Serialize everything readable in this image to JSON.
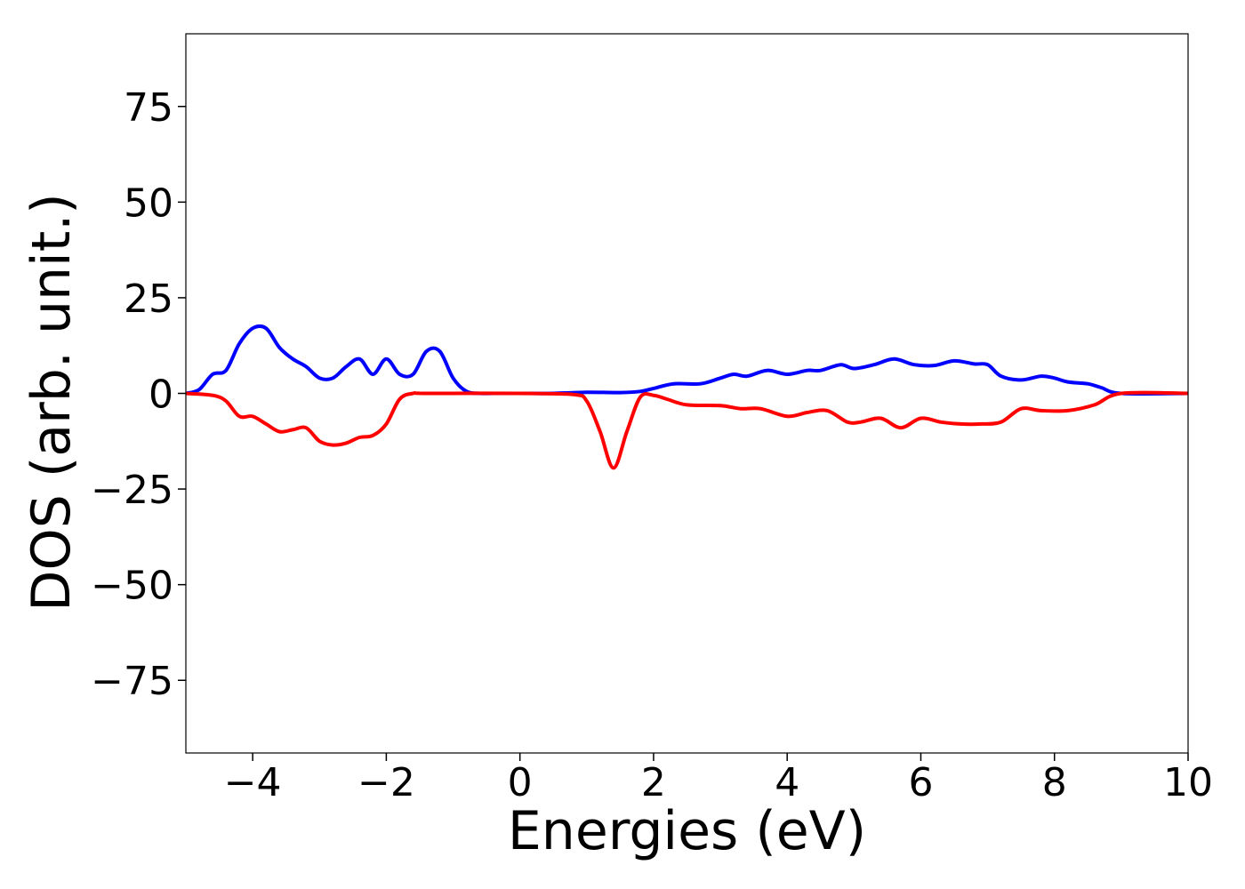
{
  "chart_data": {
    "type": "line",
    "title": "",
    "xlabel": "Energies (eV)",
    "ylabel": "DOS (arb. unit.)",
    "xlim": [
      -5,
      10
    ],
    "ylim": [
      -94,
      94
    ],
    "xticks": [
      -4,
      -2,
      0,
      2,
      4,
      6,
      8,
      10
    ],
    "xtick_labels": [
      "−4",
      "−2",
      "0",
      "2",
      "4",
      "6",
      "8",
      "10"
    ],
    "yticks": [
      75,
      50,
      25,
      0,
      -25,
      -50,
      -75
    ],
    "ytick_labels": [
      "75",
      "50",
      "25",
      "0",
      "−25",
      "−50",
      "−75"
    ],
    "grid": false,
    "legend": "none",
    "series": [
      {
        "color": "#0000ff",
        "x": [
          -5.0,
          -4.8,
          -4.6,
          -4.4,
          -4.2,
          -4.0,
          -3.8,
          -3.6,
          -3.4,
          -3.2,
          -3.0,
          -2.8,
          -2.6,
          -2.4,
          -2.2,
          -2.0,
          -1.8,
          -1.6,
          -1.4,
          -1.2,
          -1.0,
          -0.8,
          -0.6,
          -0.4,
          0.0,
          0.5,
          1.0,
          1.5,
          1.8,
          2.0,
          2.3,
          2.7,
          3.0,
          3.2,
          3.4,
          3.7,
          4.0,
          4.3,
          4.5,
          4.8,
          5.0,
          5.3,
          5.6,
          5.9,
          6.2,
          6.5,
          6.8,
          7.0,
          7.2,
          7.5,
          7.8,
          8.0,
          8.2,
          8.5,
          8.7,
          9.0,
          10.0
        ],
        "values": [
          0,
          1,
          5,
          6,
          13,
          17,
          17,
          12,
          9,
          7,
          4,
          4,
          7,
          9,
          5,
          9,
          5,
          5,
          11,
          11,
          4,
          0.5,
          0,
          0,
          0,
          0,
          0.3,
          0.2,
          0.5,
          1.3,
          2.5,
          2.5,
          4,
          5,
          4.5,
          6,
          5,
          6,
          6,
          7.5,
          6.5,
          7.5,
          9,
          7.5,
          7.3,
          8.5,
          7.7,
          7.5,
          4.5,
          3.5,
          4.5,
          4,
          3,
          2.5,
          1.5,
          0,
          0
        ]
      },
      {
        "color": "#ff0000",
        "x": [
          -5.0,
          -4.6,
          -4.4,
          -4.2,
          -4.0,
          -3.8,
          -3.6,
          -3.4,
          -3.2,
          -3.0,
          -2.8,
          -2.6,
          -2.4,
          -2.2,
          -2.0,
          -1.8,
          -1.6,
          -1.4,
          0.0,
          0.8,
          1.0,
          1.2,
          1.4,
          1.6,
          1.8,
          2.0,
          2.2,
          2.5,
          3.0,
          3.3,
          3.6,
          4.0,
          4.3,
          4.6,
          4.9,
          5.1,
          5.4,
          5.7,
          6.0,
          6.3,
          6.6,
          6.9,
          7.2,
          7.5,
          7.8,
          8.2,
          8.6,
          9.0,
          10.0
        ],
        "values": [
          0,
          -0.5,
          -2,
          -6,
          -6,
          -8,
          -10,
          -9.5,
          -9,
          -12.5,
          -13.5,
          -13,
          -11.5,
          -11,
          -8,
          -1.5,
          0,
          0,
          0,
          -0.3,
          -2,
          -10,
          -19.5,
          -10,
          -1,
          -0.5,
          -1.5,
          -3,
          -3.2,
          -4,
          -4,
          -6,
          -5,
          -4.5,
          -7.5,
          -7.5,
          -6.5,
          -9,
          -6.5,
          -7.5,
          -8,
          -8,
          -7.5,
          -4,
          -4.5,
          -4.5,
          -3,
          0,
          0
        ]
      }
    ]
  }
}
